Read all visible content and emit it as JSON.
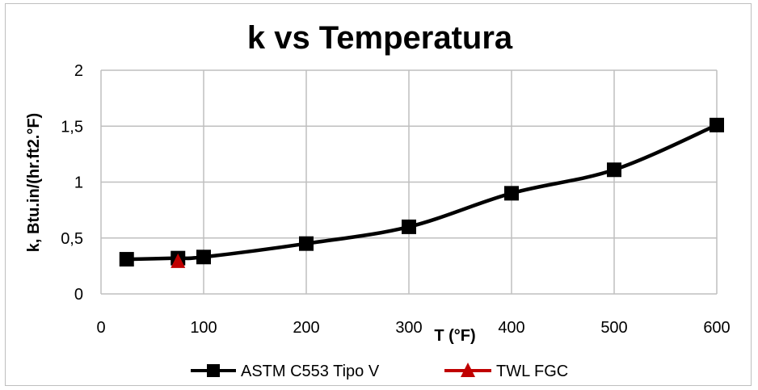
{
  "chart_data": {
    "type": "scatter",
    "title": "k vs Temperatura",
    "xlabel": "T (°F)",
    "ylabel": "k, Btu.in/(hr.ft2.°F)",
    "xlim": [
      0,
      600
    ],
    "ylim": [
      0,
      2
    ],
    "xticks": [
      0,
      100,
      200,
      300,
      400,
      500,
      600
    ],
    "yticks": [
      0,
      0.5,
      1,
      1.5,
      2
    ],
    "xtick_labels": [
      "0",
      "100",
      "200",
      "300",
      "400",
      "500",
      "600"
    ],
    "ytick_labels": [
      "0",
      "0,5",
      "1",
      "1,5",
      "2"
    ],
    "grid": true,
    "legend_position": "bottom",
    "series": [
      {
        "name": "ASTM C553 Tipo V",
        "color": "#000000",
        "marker": "square",
        "smooth": true,
        "x": [
          25,
          75,
          100,
          200,
          300,
          400,
          500,
          600
        ],
        "y": [
          0.31,
          0.32,
          0.33,
          0.45,
          0.6,
          0.9,
          1.11,
          1.51
        ]
      },
      {
        "name": "TWL FGC",
        "color": "#c00000",
        "marker": "triangle",
        "x": [
          75
        ],
        "y": [
          0.29
        ]
      }
    ]
  }
}
